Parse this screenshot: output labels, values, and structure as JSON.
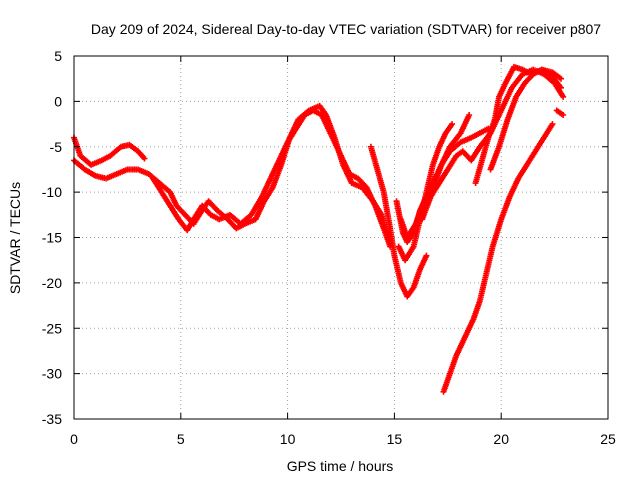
{
  "chart_data": {
    "type": "scatter",
    "title": "Day 209 of 2024, Sidereal Day-to-day VTEC variation (SDTVAR) for receiver p807",
    "xlabel": "GPS time / hours",
    "ylabel": "SDTVAR / TECUs",
    "xlim": [
      0,
      25
    ],
    "ylim": [
      -35,
      5
    ],
    "xticks": [
      0,
      5,
      10,
      15,
      20,
      25
    ],
    "yticks": [
      5,
      0,
      -5,
      -10,
      -15,
      -20,
      -25,
      -30,
      -35
    ],
    "grid": true,
    "marker": "+",
    "color": "#ff0000",
    "series": [
      {
        "points": [
          [
            0,
            -4
          ],
          [
            0.3,
            -6
          ],
          [
            0.8,
            -7
          ],
          [
            1.3,
            -6.5
          ],
          [
            1.7,
            -6
          ],
          [
            2.2,
            -5
          ],
          [
            2.6,
            -4.8
          ],
          [
            3.0,
            -5.5
          ],
          [
            3.3,
            -6.3
          ]
        ]
      },
      {
        "points": [
          [
            0,
            -6.5
          ],
          [
            0.5,
            -7.5
          ],
          [
            1.0,
            -8.2
          ],
          [
            1.5,
            -8.5
          ],
          [
            2.0,
            -8
          ],
          [
            2.5,
            -7.5
          ],
          [
            3.0,
            -7.5
          ],
          [
            3.5,
            -8
          ],
          [
            4.0,
            -9
          ],
          [
            4.5,
            -10
          ],
          [
            4.8,
            -11.5
          ],
          [
            5.2,
            -12.5
          ],
          [
            5.6,
            -13.5
          ],
          [
            6.0,
            -12
          ],
          [
            6.3,
            -11
          ],
          [
            6.7,
            -12
          ],
          [
            7.2,
            -13
          ],
          [
            7.6,
            -14
          ],
          [
            8.0,
            -13.5
          ],
          [
            8.5,
            -13
          ],
          [
            8.9,
            -11
          ],
          [
            9.3,
            -9.5
          ],
          [
            9.7,
            -7
          ],
          [
            10.1,
            -4
          ],
          [
            10.5,
            -2
          ],
          [
            11.0,
            -1
          ],
          [
            11.5,
            -0.5
          ],
          [
            11.8,
            -1.5
          ],
          [
            12.2,
            -4
          ],
          [
            12.6,
            -7
          ],
          [
            13.0,
            -9
          ],
          [
            13.5,
            -9.5
          ],
          [
            14.0,
            -11
          ],
          [
            14.4,
            -12.5
          ],
          [
            14.7,
            -15
          ]
        ]
      },
      {
        "points": [
          [
            3.7,
            -8.5
          ],
          [
            4.1,
            -10
          ],
          [
            4.5,
            -11.5
          ],
          [
            4.9,
            -13
          ],
          [
            5.3,
            -14.2
          ],
          [
            5.6,
            -13
          ],
          [
            6.0,
            -11.5
          ],
          [
            6.4,
            -12.5
          ],
          [
            6.8,
            -13
          ],
          [
            7.3,
            -12.5
          ],
          [
            7.8,
            -13.5
          ],
          [
            8.3,
            -12.5
          ],
          [
            8.8,
            -10.5
          ],
          [
            9.2,
            -8.5
          ],
          [
            9.6,
            -6.5
          ],
          [
            10.0,
            -4.5
          ],
          [
            10.4,
            -3
          ],
          [
            10.8,
            -1.5
          ],
          [
            11.2,
            -1
          ],
          [
            11.6,
            -1.5
          ],
          [
            12.0,
            -3.5
          ],
          [
            12.5,
            -6
          ],
          [
            12.9,
            -8
          ],
          [
            13.3,
            -8.5
          ],
          [
            13.7,
            -9.5
          ],
          [
            14.1,
            -11.5
          ],
          [
            14.5,
            -14
          ],
          [
            14.8,
            -16
          ]
        ]
      },
      {
        "points": [
          [
            13.9,
            -5
          ],
          [
            14.2,
            -7.5
          ],
          [
            14.5,
            -10
          ],
          [
            14.8,
            -14
          ],
          [
            15.0,
            -17
          ],
          [
            15.3,
            -20
          ],
          [
            15.6,
            -21.5
          ],
          [
            15.9,
            -20.5
          ],
          [
            16.2,
            -18.5
          ],
          [
            16.5,
            -17
          ]
        ]
      },
      {
        "points": [
          [
            15.1,
            -11
          ],
          [
            15.4,
            -14.5
          ],
          [
            15.6,
            -15.5
          ],
          [
            15.9,
            -14.5
          ],
          [
            16.2,
            -12
          ],
          [
            16.5,
            -10.5
          ],
          [
            16.9,
            -9
          ],
          [
            17.2,
            -7
          ],
          [
            17.6,
            -5
          ],
          [
            18.1,
            -3.5
          ],
          [
            18.5,
            -1.5
          ]
        ]
      },
      {
        "points": [
          [
            15.2,
            -16
          ],
          [
            15.5,
            -17.5
          ],
          [
            15.9,
            -16
          ],
          [
            16.2,
            -13
          ],
          [
            16.5,
            -10
          ],
          [
            16.8,
            -7
          ],
          [
            17.1,
            -5
          ],
          [
            17.4,
            -3.5
          ],
          [
            17.7,
            -2.5
          ]
        ]
      },
      {
        "points": [
          [
            15.3,
            -13
          ],
          [
            15.6,
            -15
          ],
          [
            16.0,
            -13.5
          ],
          [
            16.4,
            -11
          ],
          [
            16.8,
            -9
          ],
          [
            17.2,
            -7
          ],
          [
            17.6,
            -5.5
          ],
          [
            18.1,
            -4.5
          ],
          [
            18.6,
            -4
          ],
          [
            19.0,
            -3.5
          ],
          [
            19.4,
            -3
          ]
        ]
      },
      {
        "points": [
          [
            16.3,
            -13
          ],
          [
            16.7,
            -10.5
          ],
          [
            17.1,
            -9
          ],
          [
            17.5,
            -7.5
          ],
          [
            17.9,
            -6
          ],
          [
            18.2,
            -5.5
          ],
          [
            18.6,
            -6.5
          ],
          [
            19.0,
            -5
          ],
          [
            19.5,
            -3.5
          ],
          [
            20.0,
            -1
          ],
          [
            20.5,
            1.5
          ],
          [
            21.0,
            3
          ],
          [
            21.5,
            3.5
          ],
          [
            22.0,
            3
          ],
          [
            22.5,
            2
          ],
          [
            22.9,
            0.5
          ]
        ]
      },
      {
        "points": [
          [
            19.5,
            -7.5
          ],
          [
            19.9,
            -5
          ],
          [
            20.3,
            -2
          ],
          [
            20.7,
            0.5
          ],
          [
            21.1,
            2
          ],
          [
            21.5,
            3
          ],
          [
            21.9,
            3.5
          ],
          [
            22.4,
            3.2
          ],
          [
            22.8,
            2.5
          ]
        ]
      },
      {
        "points": [
          [
            18.8,
            -9
          ],
          [
            19.1,
            -6.5
          ],
          [
            19.4,
            -4
          ],
          [
            19.7,
            -2
          ],
          [
            19.9,
            0.5
          ],
          [
            20.2,
            2
          ],
          [
            20.6,
            3.8
          ],
          [
            21.0,
            3.5
          ],
          [
            21.4,
            3
          ],
          [
            21.9,
            3.5
          ],
          [
            22.3,
            3
          ],
          [
            22.8,
            1.5
          ]
        ]
      },
      {
        "points": [
          [
            17.3,
            -32
          ],
          [
            17.6,
            -30
          ],
          [
            17.9,
            -28
          ],
          [
            18.3,
            -26
          ],
          [
            18.7,
            -24
          ],
          [
            19.0,
            -22
          ],
          [
            19.3,
            -19
          ],
          [
            19.6,
            -16
          ],
          [
            20.0,
            -13
          ],
          [
            20.4,
            -10.5
          ],
          [
            20.8,
            -8.5
          ],
          [
            21.2,
            -7
          ],
          [
            21.6,
            -5.5
          ],
          [
            22.0,
            -4
          ],
          [
            22.4,
            -2.5
          ]
        ]
      },
      {
        "points": [
          [
            22.6,
            -1
          ],
          [
            22.9,
            -1.5
          ]
        ]
      }
    ]
  }
}
